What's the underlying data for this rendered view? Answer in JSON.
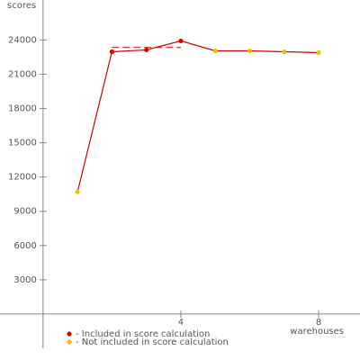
{
  "chart_data": {
    "type": "line",
    "y_label": "scores",
    "x_label": "warehouses",
    "x": [
      1,
      2,
      3,
      4,
      5,
      6,
      7,
      8
    ],
    "values": [
      10700,
      22970,
      23130,
      23920,
      23050,
      23050,
      22970,
      22890
    ],
    "included": [
      false,
      true,
      true,
      true,
      false,
      false,
      false,
      false
    ],
    "line_color": "#cc0000",
    "score_line": {
      "x": [
        2,
        4
      ],
      "value": 23340,
      "color": "#cc0000"
    },
    "legend": [
      {
        "label": "- Included in score calculation",
        "color": "#dd0000"
      },
      {
        "label": "- Not included in score calculation",
        "color": "#f0c000"
      }
    ],
    "xlim": [
      -1.25,
      9.2
    ],
    "ylim": [
      -3000,
      27500
    ],
    "xticks": [
      4,
      8
    ],
    "yticks": [
      3000,
      6000,
      9000,
      12000,
      15000,
      18000,
      21000,
      24000
    ]
  }
}
